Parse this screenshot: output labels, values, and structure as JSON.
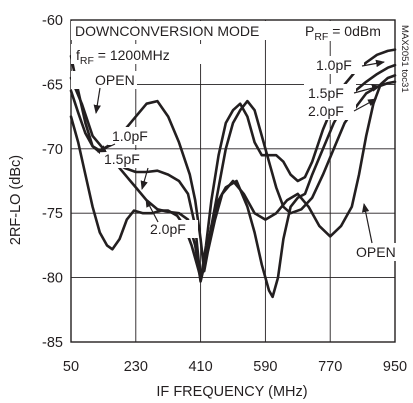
{
  "chart_data": {
    "type": "line",
    "xlabel": "IF FREQUENCY (MHz)",
    "ylabel": "2RF-LO (dBc)",
    "xlim": [
      50,
      950
    ],
    "ylim": [
      -85,
      -60
    ],
    "x_ticks": [
      50,
      230,
      410,
      590,
      770,
      950
    ],
    "y_ticks": [
      -60,
      -65,
      -70,
      -75,
      -80,
      -85
    ],
    "x_tick_labels": [
      "50",
      "230",
      "410",
      "590",
      "770",
      "950"
    ],
    "y_tick_labels": [
      "-60",
      "-65",
      "-70",
      "-75",
      "-80",
      "-85"
    ],
    "grid": true,
    "annotations": {
      "mode": "DOWNCONVERSION MODE",
      "frf_main": "f",
      "frf_sub": "RF",
      "frf_value": " = 1200MHz",
      "prf_main": "P",
      "prf_sub": "RF",
      "prf_value": " = 0dBm",
      "part_code": "MAX2051 toc31"
    },
    "series": [
      {
        "label": "OPEN",
        "label_right": "OPEN",
        "points": [
          [
            50,
            -64.5
          ],
          [
            80,
            -66.5
          ],
          [
            110,
            -69
          ],
          [
            140,
            -70
          ],
          [
            170,
            -69.5
          ],
          [
            200,
            -68.5
          ],
          [
            230,
            -67.5
          ],
          [
            260,
            -66.5
          ],
          [
            290,
            -66.3
          ],
          [
            320,
            -67.5
          ],
          [
            350,
            -69.5
          ],
          [
            380,
            -72
          ],
          [
            395,
            -74
          ],
          [
            410,
            -77
          ],
          [
            420,
            -79.5
          ],
          [
            430,
            -78
          ],
          [
            450,
            -75.5
          ],
          [
            470,
            -73.5
          ],
          [
            500,
            -72.5
          ],
          [
            530,
            -73.5
          ],
          [
            560,
            -75
          ],
          [
            590,
            -75.5
          ],
          [
            620,
            -75
          ],
          [
            650,
            -74
          ],
          [
            680,
            -73.5
          ],
          [
            710,
            -74.5
          ],
          [
            740,
            -76
          ],
          [
            770,
            -76.8
          ],
          [
            800,
            -76
          ],
          [
            830,
            -74.5
          ],
          [
            850,
            -72
          ],
          [
            870,
            -69
          ],
          [
            890,
            -66.5
          ],
          [
            910,
            -65
          ],
          [
            930,
            -64.5
          ],
          [
            950,
            -64.3
          ]
        ]
      },
      {
        "label": "1.0pF",
        "label_right": "1.0pF",
        "points": [
          [
            50,
            -62.8
          ],
          [
            70,
            -65.5
          ],
          [
            90,
            -68
          ],
          [
            110,
            -69.8
          ],
          [
            140,
            -70.5
          ],
          [
            170,
            -71
          ],
          [
            200,
            -71.5
          ],
          [
            230,
            -71.8
          ],
          [
            260,
            -71.8
          ],
          [
            290,
            -71.7
          ],
          [
            320,
            -72
          ],
          [
            350,
            -72.5
          ],
          [
            375,
            -73.5
          ],
          [
            395,
            -76
          ],
          [
            410,
            -80.2
          ],
          [
            425,
            -77.5
          ],
          [
            440,
            -74
          ],
          [
            460,
            -70.5
          ],
          [
            480,
            -68
          ],
          [
            500,
            -67
          ],
          [
            520,
            -66.5
          ],
          [
            540,
            -67.5
          ],
          [
            560,
            -69.5
          ],
          [
            580,
            -70.5
          ],
          [
            600,
            -70.5
          ],
          [
            620,
            -70.5
          ],
          [
            640,
            -71
          ],
          [
            660,
            -72
          ],
          [
            680,
            -72.5
          ],
          [
            700,
            -72.2
          ],
          [
            720,
            -71
          ],
          [
            750,
            -68.5
          ],
          [
            780,
            -66.5
          ],
          [
            810,
            -65
          ],
          [
            840,
            -64
          ],
          [
            870,
            -63.3
          ],
          [
            900,
            -62.7
          ],
          [
            930,
            -62.4
          ],
          [
            950,
            -62.3
          ]
        ]
      },
      {
        "label": "1.5pF",
        "label_right": "1.5pF",
        "points": [
          [
            50,
            -65.5
          ],
          [
            70,
            -67.2
          ],
          [
            90,
            -68.8
          ],
          [
            110,
            -69.8
          ],
          [
            140,
            -70.3
          ],
          [
            170,
            -71
          ],
          [
            200,
            -72
          ],
          [
            230,
            -73
          ],
          [
            260,
            -74
          ],
          [
            290,
            -74.7
          ],
          [
            320,
            -74.9
          ],
          [
            350,
            -75
          ],
          [
            375,
            -75.5
          ],
          [
            395,
            -77.5
          ],
          [
            410,
            -80.3
          ],
          [
            425,
            -78.5
          ],
          [
            440,
            -76
          ],
          [
            460,
            -74
          ],
          [
            480,
            -73
          ],
          [
            510,
            -72.5
          ],
          [
            540,
            -74.5
          ],
          [
            560,
            -76.5
          ],
          [
            580,
            -79
          ],
          [
            600,
            -81
          ],
          [
            610,
            -81.5
          ],
          [
            625,
            -80
          ],
          [
            640,
            -77
          ],
          [
            660,
            -74.5
          ],
          [
            680,
            -73.8
          ],
          [
            700,
            -73.5
          ],
          [
            720,
            -72
          ],
          [
            750,
            -70
          ],
          [
            780,
            -68
          ],
          [
            810,
            -66.5
          ],
          [
            840,
            -65.5
          ],
          [
            870,
            -64.8
          ],
          [
            900,
            -64.2
          ],
          [
            930,
            -63.7
          ],
          [
            950,
            -63.5
          ]
        ]
      },
      {
        "label": "2.0pF",
        "label_right": "2.0pF",
        "points": [
          [
            50,
            -67.5
          ],
          [
            70,
            -69.5
          ],
          [
            90,
            -72
          ],
          [
            110,
            -74.5
          ],
          [
            130,
            -76.5
          ],
          [
            150,
            -77.5
          ],
          [
            165,
            -77.8
          ],
          [
            185,
            -77
          ],
          [
            205,
            -75.5
          ],
          [
            225,
            -74.8
          ],
          [
            250,
            -75
          ],
          [
            275,
            -75
          ],
          [
            300,
            -74.8
          ],
          [
            320,
            -74.8
          ],
          [
            345,
            -75.2
          ],
          [
            365,
            -76
          ],
          [
            385,
            -77.5
          ],
          [
            400,
            -79
          ],
          [
            410,
            -80
          ],
          [
            420,
            -79
          ],
          [
            440,
            -76
          ],
          [
            460,
            -73
          ],
          [
            480,
            -70
          ],
          [
            500,
            -68
          ],
          [
            520,
            -67
          ],
          [
            540,
            -66.3
          ],
          [
            560,
            -67
          ],
          [
            580,
            -69
          ],
          [
            600,
            -71
          ],
          [
            620,
            -73
          ],
          [
            640,
            -74.5
          ],
          [
            660,
            -75
          ],
          [
            690,
            -74.7
          ],
          [
            720,
            -73.8
          ],
          [
            750,
            -72
          ],
          [
            780,
            -70
          ],
          [
            810,
            -68
          ],
          [
            840,
            -66.8
          ],
          [
            870,
            -65.7
          ],
          [
            900,
            -65.2
          ],
          [
            930,
            -64.9
          ],
          [
            950,
            -64.8
          ]
        ]
      }
    ]
  }
}
